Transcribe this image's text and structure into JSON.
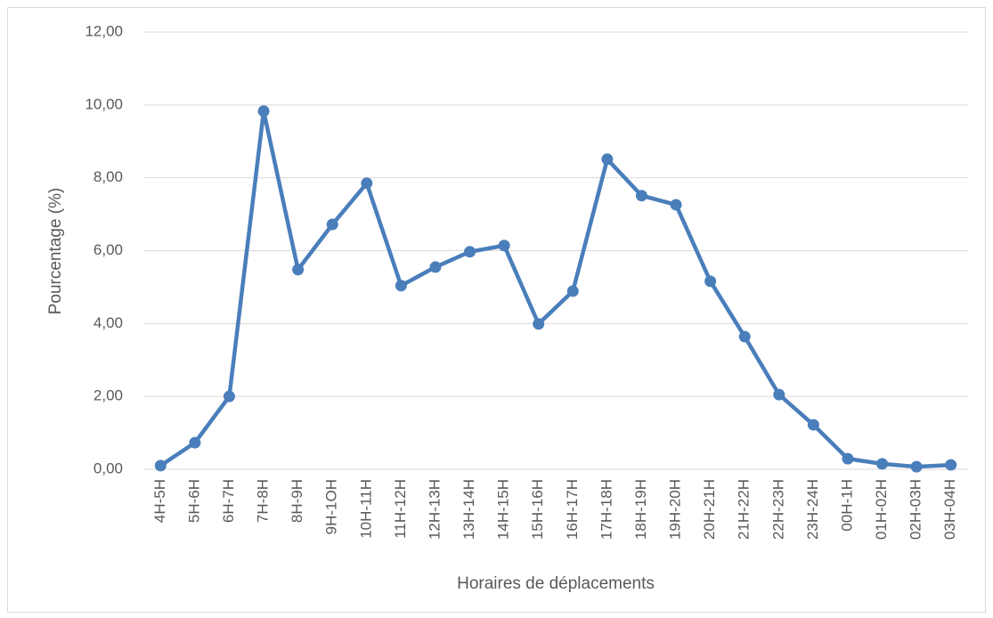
{
  "chart_data": {
    "type": "line",
    "y_label": "Pourcentage (%)",
    "x_label": "Horaires de déplacements",
    "categories": [
      "4H-5H",
      "5H-6H",
      "6H-7H",
      "7H-8H",
      "8H-9H",
      "9H-1OH",
      "10H-11H",
      "11H-12H",
      "12H-13H",
      "13H-14H",
      "14H-15H",
      "15H-16H",
      "16H-17H",
      "17H-18H",
      "18H-19H",
      "19H-20H",
      "20H-21H",
      "21H-22H",
      "22H-23H",
      "23H-24H",
      "00H-1H",
      "01H-02H",
      "02H-03H",
      "03H-04H"
    ],
    "series": [
      {
        "name": "Pourcentage",
        "color": "#4a7ebb",
        "values": [
          0.1,
          0.73,
          2.0,
          9.83,
          5.48,
          6.72,
          7.85,
          5.04,
          5.55,
          5.97,
          6.14,
          3.99,
          4.89,
          8.51,
          7.51,
          7.26,
          5.16,
          3.64,
          2.05,
          1.22,
          0.29,
          0.15,
          0.07,
          0.12
        ]
      }
    ],
    "ylim": [
      0,
      12
    ],
    "yticks": [
      {
        "value": 0,
        "label": "0,00"
      },
      {
        "value": 2,
        "label": "2,00"
      },
      {
        "value": 4,
        "label": "4,00"
      },
      {
        "value": 6,
        "label": "6,00"
      },
      {
        "value": 8,
        "label": "8,00"
      },
      {
        "value": 10,
        "label": "10,00"
      },
      {
        "value": 12,
        "label": "12,00"
      }
    ],
    "grid": true
  }
}
